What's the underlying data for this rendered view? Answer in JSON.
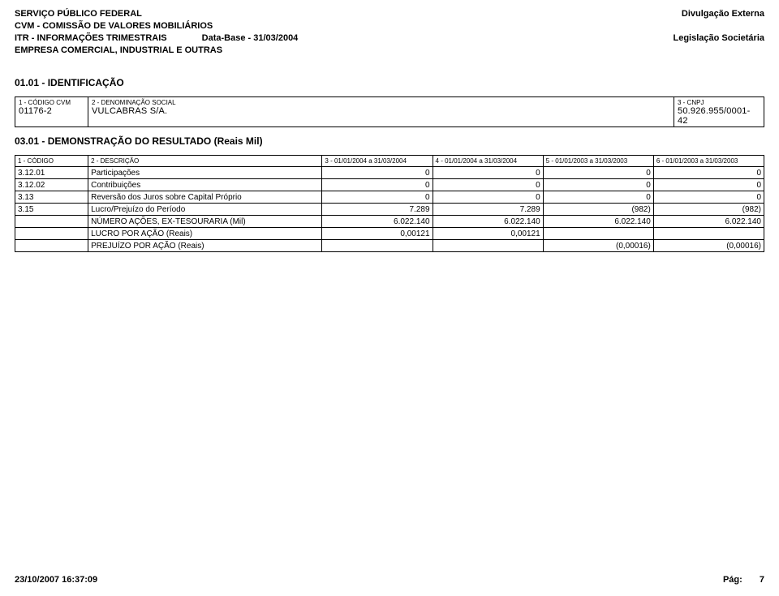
{
  "header": {
    "left": [
      "SERVIÇO PÚBLICO FEDERAL",
      "CVM - COMISSÃO DE VALORES MOBILIÁRIOS",
      "ITR - INFORMAÇÕES TRIMESTRAIS",
      "EMPRESA COMERCIAL, INDUSTRIAL E OUTRAS"
    ],
    "data_base_label": "Data-Base - 31/03/2004",
    "right": [
      "Divulgação Externa",
      "Legislação Societária"
    ]
  },
  "section1_title": "01.01 - IDENTIFICAÇÃO",
  "ident": {
    "labels": [
      "1 - CÓDIGO CVM",
      "2 - DENOMINAÇÃO SOCIAL",
      "3 - CNPJ"
    ],
    "values": [
      "01176-2",
      "VULCABRAS S/A.",
      "50.926.955/0001-42"
    ]
  },
  "section2_title": "03.01 - DEMONSTRAÇÃO DO RESULTADO (Reais Mil)",
  "table": {
    "columns": [
      "1 - CÓDIGO",
      "2 - DESCRIÇÃO",
      "3 - 01/01/2004 a 31/03/2004",
      "4 - 01/01/2004 a 31/03/2004",
      "5 - 01/01/2003 a 31/03/2003",
      "6 - 01/01/2003 a 31/03/2003"
    ],
    "rows": [
      {
        "code": "3.12.01",
        "desc": "Participações",
        "v": [
          "0",
          "0",
          "0",
          "0"
        ]
      },
      {
        "code": "3.12.02",
        "desc": "Contribuições",
        "v": [
          "0",
          "0",
          "0",
          "0"
        ]
      },
      {
        "code": "3.13",
        "desc": "Reversão dos Juros sobre Capital Próprio",
        "v": [
          "0",
          "0",
          "0",
          "0"
        ]
      },
      {
        "code": "3.15",
        "desc": "Lucro/Prejuízo do Período",
        "v": [
          "7.289",
          "7.289",
          "(982)",
          "(982)"
        ]
      },
      {
        "code": "",
        "desc": "NÚMERO AÇÕES, EX-TESOURARIA (Mil)",
        "v": [
          "6.022.140",
          "6.022.140",
          "6.022.140",
          "6.022.140"
        ]
      },
      {
        "code": "",
        "desc": "LUCRO POR AÇÃO  (Reais)",
        "v": [
          "0,00121",
          "0,00121",
          "",
          ""
        ]
      },
      {
        "code": "",
        "desc": "PREJUÍZO POR AÇÃO  (Reais)",
        "v": [
          "",
          "",
          "(0,00016)",
          "(0,00016)"
        ]
      }
    ]
  },
  "footer": {
    "timestamp": "23/10/2007 16:37:09",
    "page_label": "Pág:",
    "page_number": "7"
  }
}
